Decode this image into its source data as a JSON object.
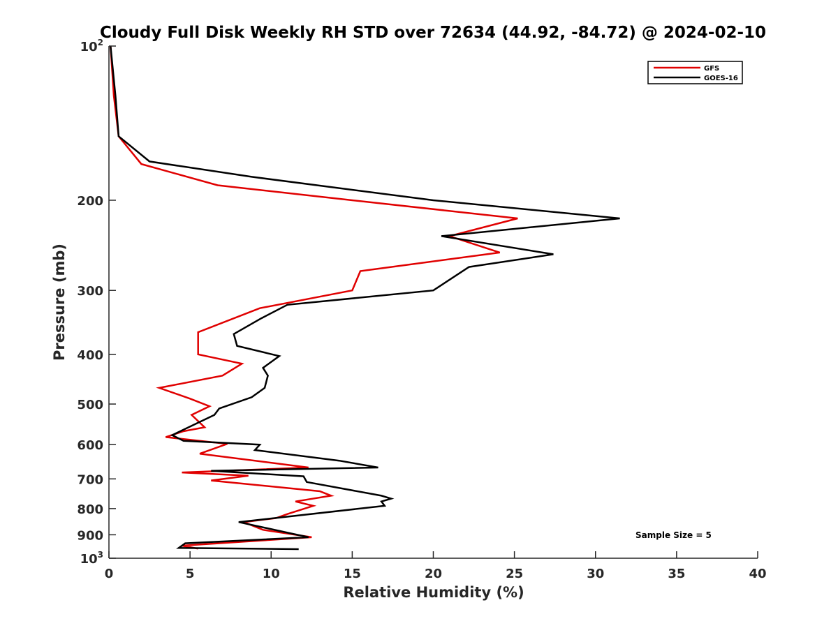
{
  "chart_data": {
    "type": "line",
    "title": "Cloudy Full Disk Weekly RH STD over 72634 (44.92, -84.72) @ 2024-02-10",
    "xlabel": "Relative Humidity (%)",
    "ylabel": "Pressure (mb)",
    "xlim": [
      0,
      40
    ],
    "ylim": [
      100,
      1000
    ],
    "y_scale": "log",
    "y_reversed": true,
    "grid": false,
    "legend_position": "top-right",
    "x_ticks": [
      0,
      5,
      10,
      15,
      20,
      25,
      30,
      35,
      40
    ],
    "y_ticks": [
      {
        "value": 100,
        "base": "10",
        "exp": "2"
      },
      {
        "value": 200,
        "label": "200"
      },
      {
        "value": 300,
        "label": "300"
      },
      {
        "value": 400,
        "label": "400"
      },
      {
        "value": 500,
        "label": "500"
      },
      {
        "value": 600,
        "label": "600"
      },
      {
        "value": 700,
        "label": "700"
      },
      {
        "value": 800,
        "label": "800"
      },
      {
        "value": 900,
        "label": "900"
      },
      {
        "value": 1000,
        "base": "10",
        "exp": "3"
      }
    ],
    "annotation": "Sample Size = 5",
    "series": [
      {
        "name": "GFS",
        "color": "#e00000",
        "points": [
          [
            0.1,
            100
          ],
          [
            0.3,
            125
          ],
          [
            0.6,
            150
          ],
          [
            2.0,
            170
          ],
          [
            6.7,
            187
          ],
          [
            15.0,
            200
          ],
          [
            25.2,
            217
          ],
          [
            21.0,
            235
          ],
          [
            24.1,
            253
          ],
          [
            15.5,
            275
          ],
          [
            15.0,
            300
          ],
          [
            9.3,
            325
          ],
          [
            5.5,
            362
          ],
          [
            5.5,
            400
          ],
          [
            8.2,
            417
          ],
          [
            7.0,
            440
          ],
          [
            3.1,
            465
          ],
          [
            5.0,
            488
          ],
          [
            6.2,
            505
          ],
          [
            5.1,
            525
          ],
          [
            5.9,
            555
          ],
          [
            4.6,
            565
          ],
          [
            3.5,
            580
          ],
          [
            7.3,
            598
          ],
          [
            5.6,
            625
          ],
          [
            12.3,
            665
          ],
          [
            4.5,
            680
          ],
          [
            8.6,
            690
          ],
          [
            6.3,
            705
          ],
          [
            13.0,
            740
          ],
          [
            13.7,
            755
          ],
          [
            11.5,
            775
          ],
          [
            12.6,
            790
          ],
          [
            11.0,
            820
          ],
          [
            10.3,
            835
          ],
          [
            8.3,
            850
          ],
          [
            9.5,
            880
          ],
          [
            12.5,
            910
          ],
          [
            4.5,
            945
          ],
          [
            5.5,
            958
          ]
        ]
      },
      {
        "name": "GOES-16",
        "color": "#000000",
        "points": [
          [
            0.1,
            100
          ],
          [
            0.4,
            125
          ],
          [
            0.6,
            150
          ],
          [
            2.5,
            168
          ],
          [
            8.8,
            180
          ],
          [
            20.0,
            200
          ],
          [
            31.5,
            217
          ],
          [
            20.5,
            235
          ],
          [
            27.4,
            255
          ],
          [
            22.2,
            270
          ],
          [
            20.0,
            300
          ],
          [
            11.0,
            320
          ],
          [
            9.4,
            340
          ],
          [
            7.7,
            365
          ],
          [
            7.9,
            385
          ],
          [
            10.5,
            403
          ],
          [
            9.5,
            425
          ],
          [
            9.8,
            440
          ],
          [
            9.6,
            465
          ],
          [
            8.8,
            485
          ],
          [
            6.8,
            510
          ],
          [
            6.5,
            525
          ],
          [
            3.9,
            575
          ],
          [
            4.6,
            590
          ],
          [
            9.3,
            600
          ],
          [
            9.0,
            615
          ],
          [
            14.2,
            645
          ],
          [
            16.6,
            665
          ],
          [
            6.3,
            675
          ],
          [
            12.0,
            692
          ],
          [
            12.2,
            710
          ],
          [
            16.8,
            755
          ],
          [
            17.4,
            765
          ],
          [
            16.8,
            775
          ],
          [
            17.0,
            790
          ],
          [
            8.0,
            850
          ],
          [
            12.3,
            910
          ],
          [
            4.7,
            935
          ],
          [
            4.3,
            955
          ],
          [
            11.7,
            960
          ]
        ]
      }
    ]
  }
}
